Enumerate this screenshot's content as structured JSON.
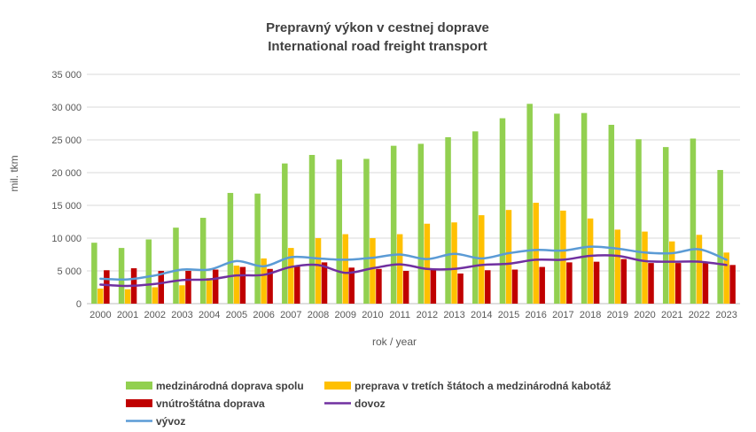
{
  "chart_data": {
    "type": "bar",
    "title_line1": "Prepravný výkon v cestnej doprave",
    "title_line2": "International road freight transport",
    "xlabel": "rok / year",
    "ylabel": "mil. tkm",
    "ylim": [
      0,
      35000
    ],
    "yticks": [
      "0",
      "5 000",
      "10 000",
      "15 000",
      "20 000",
      "25 000",
      "30 000",
      "35 000"
    ],
    "grid": true,
    "legend_position": "bottom",
    "categories": [
      "2000",
      "2001",
      "2002",
      "2003",
      "2004",
      "2005",
      "2006",
      "2007",
      "2008",
      "2009",
      "2010",
      "2011",
      "2012",
      "2013",
      "2014",
      "2015",
      "2016",
      "2017",
      "2018",
      "2019",
      "2020",
      "2021",
      "2022",
      "2023"
    ],
    "series": [
      {
        "name": "medzinárodná doprava spolu",
        "kind": "bar",
        "color": "#92d050",
        "values": [
          9300,
          8500,
          9800,
          11600,
          13100,
          16900,
          16800,
          21400,
          22700,
          22000,
          22100,
          24100,
          24400,
          25400,
          26300,
          28300,
          30500,
          29000,
          29100,
          27300,
          25100,
          23900,
          25200,
          20400
        ]
      },
      {
        "name": "preprava v tretích štátoch a medzinárodná kabotáž",
        "kind": "bar",
        "color": "#ffc000",
        "values": [
          2300,
          2200,
          2500,
          2800,
          3900,
          5800,
          6900,
          8500,
          10000,
          10600,
          10000,
          10600,
          12200,
          12400,
          13500,
          14300,
          15400,
          14200,
          13000,
          11300,
          11000,
          9500,
          10500,
          7800
        ]
      },
      {
        "name": "vnútroštátna doprava",
        "kind": "bar",
        "color": "#c00000",
        "values": [
          5100,
          5400,
          5000,
          5000,
          5200,
          5600,
          5300,
          5800,
          6300,
          5500,
          5300,
          5000,
          5300,
          4600,
          5100,
          5200,
          5600,
          6300,
          6400,
          6800,
          6200,
          6200,
          6200,
          5900
        ]
      },
      {
        "name": "dovoz",
        "kind": "line",
        "color": "#7030a0",
        "values": [
          2900,
          2700,
          3000,
          3600,
          3700,
          4300,
          4400,
          5600,
          5900,
          4700,
          5400,
          6000,
          5300,
          5300,
          5900,
          6100,
          6700,
          6700,
          7300,
          7300,
          6500,
          6400,
          6400,
          5900
        ]
      },
      {
        "name": "vývoz",
        "kind": "line",
        "color": "#5b9bd5",
        "values": [
          3800,
          3700,
          4300,
          5200,
          5200,
          6500,
          5700,
          7100,
          6900,
          6700,
          7000,
          7500,
          6800,
          7600,
          6900,
          7700,
          8200,
          8100,
          8700,
          8400,
          7800,
          7700,
          8300,
          6700
        ]
      }
    ]
  }
}
